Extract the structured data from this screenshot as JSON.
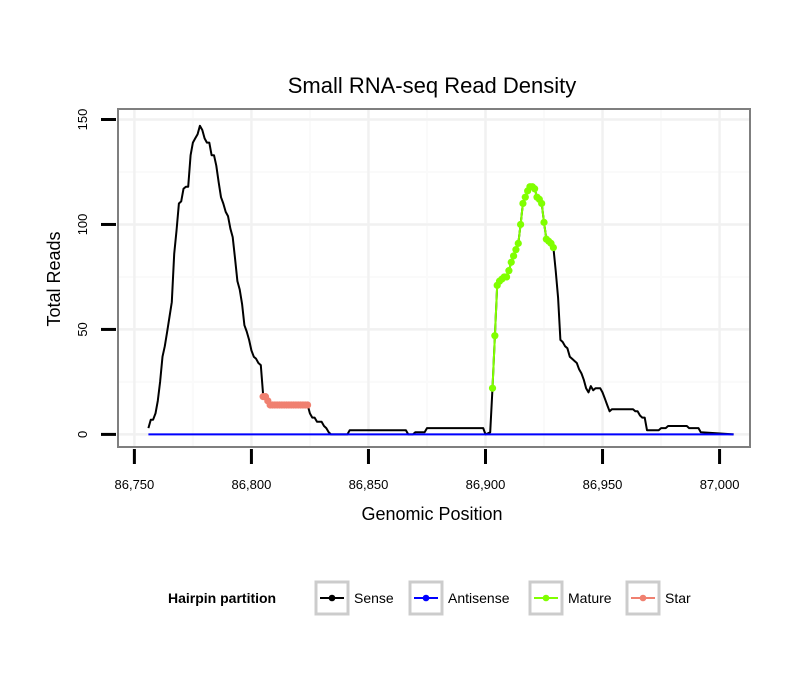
{
  "chart_data": {
    "type": "line",
    "title": "Small RNA-seq Read Density",
    "xlabel": "Genomic Position",
    "ylabel": "Total Reads",
    "xlim": [
      86743,
      87013
    ],
    "ylim": [
      -6,
      155
    ],
    "x_ticks": [
      86750,
      86800,
      86850,
      86900,
      86950,
      87000
    ],
    "x_tick_labels": [
      "86,750",
      "86,800",
      "86,850",
      "86,900",
      "86,950",
      "87,000"
    ],
    "y_ticks": [
      0,
      50,
      100,
      150
    ],
    "y_tick_labels": [
      "0",
      "50",
      "100",
      "150"
    ],
    "grid": true,
    "legend": {
      "title": "Hairpin partition",
      "position": "bottom",
      "entries": [
        "Sense",
        "Antisense",
        "Mature",
        "Star"
      ]
    },
    "series": [
      {
        "name": "Sense",
        "color": "#000000",
        "markers": false,
        "points": [
          [
            86756,
            3
          ],
          [
            86757,
            7
          ],
          [
            86758,
            7
          ],
          [
            86759,
            10
          ],
          [
            86760,
            16
          ],
          [
            86761,
            25
          ],
          [
            86762,
            37
          ],
          [
            86763,
            42
          ],
          [
            86764,
            49
          ],
          [
            86765,
            56
          ],
          [
            86766,
            63
          ],
          [
            86767,
            86
          ],
          [
            86768,
            97
          ],
          [
            86769,
            110
          ],
          [
            86770,
            111
          ],
          [
            86771,
            117
          ],
          [
            86772,
            118
          ],
          [
            86773,
            118
          ],
          [
            86774,
            133
          ],
          [
            86775,
            139
          ],
          [
            86776,
            141
          ],
          [
            86777,
            143
          ],
          [
            86778,
            147
          ],
          [
            86779,
            145
          ],
          [
            86780,
            141
          ],
          [
            86781,
            139
          ],
          [
            86782,
            139
          ],
          [
            86783,
            133
          ],
          [
            86784,
            133
          ],
          [
            86785,
            128
          ],
          [
            86786,
            120
          ],
          [
            86787,
            113
          ],
          [
            86788,
            110
          ],
          [
            86789,
            106
          ],
          [
            86790,
            104
          ],
          [
            86791,
            98
          ],
          [
            86792,
            94
          ],
          [
            86793,
            84
          ],
          [
            86794,
            73
          ],
          [
            86795,
            69
          ],
          [
            86796,
            62
          ],
          [
            86797,
            52
          ],
          [
            86798,
            49
          ],
          [
            86799,
            45
          ],
          [
            86800,
            40
          ],
          [
            86801,
            37
          ],
          [
            86802,
            36
          ],
          [
            86803,
            34
          ],
          [
            86804,
            33
          ],
          [
            86805,
            19
          ],
          [
            86806,
            18
          ],
          [
            86807,
            16
          ],
          [
            86808,
            14
          ],
          [
            86824,
            14
          ],
          [
            86825,
            10
          ],
          [
            86826,
            8
          ],
          [
            86827,
            8
          ],
          [
            86828,
            6
          ],
          [
            86829,
            6
          ],
          [
            86830,
            6
          ],
          [
            86831,
            4
          ],
          [
            86832,
            3
          ],
          [
            86833,
            1
          ],
          [
            86834,
            0
          ],
          [
            86841,
            0
          ],
          [
            86842,
            2
          ],
          [
            86858,
            2
          ],
          [
            86866,
            2
          ],
          [
            86867,
            0
          ],
          [
            86869,
            0
          ],
          [
            86870,
            1
          ],
          [
            86874,
            1
          ],
          [
            86875,
            3
          ],
          [
            86899,
            3
          ],
          [
            86900,
            0
          ],
          [
            86902,
            1
          ],
          [
            86903,
            22
          ],
          [
            86904,
            47
          ],
          [
            86905,
            71
          ],
          [
            86906,
            73
          ],
          [
            86907,
            74
          ],
          [
            86908,
            75
          ],
          [
            86909,
            75
          ],
          [
            86910,
            78
          ],
          [
            86911,
            82
          ],
          [
            86912,
            85
          ],
          [
            86913,
            88
          ],
          [
            86914,
            91
          ],
          [
            86915,
            100
          ],
          [
            86916,
            110
          ],
          [
            86917,
            113
          ],
          [
            86918,
            116
          ],
          [
            86919,
            118
          ],
          [
            86920,
            118
          ],
          [
            86921,
            117
          ],
          [
            86922,
            113
          ],
          [
            86923,
            112
          ],
          [
            86924,
            110
          ],
          [
            86925,
            101
          ],
          [
            86926,
            93
          ],
          [
            86927,
            92
          ],
          [
            86928,
            91
          ],
          [
            86929,
            89
          ],
          [
            86930,
            78
          ],
          [
            86931,
            65
          ],
          [
            86932,
            45
          ],
          [
            86933,
            44
          ],
          [
            86934,
            42
          ],
          [
            86935,
            41
          ],
          [
            86936,
            37
          ],
          [
            86937,
            36
          ],
          [
            86938,
            35
          ],
          [
            86939,
            34
          ],
          [
            86940,
            31
          ],
          [
            86941,
            29
          ],
          [
            86942,
            26
          ],
          [
            86943,
            22
          ],
          [
            86944,
            20
          ],
          [
            86945,
            23
          ],
          [
            86946,
            21
          ],
          [
            86947,
            22
          ],
          [
            86948,
            22
          ],
          [
            86949,
            22
          ],
          [
            86950,
            20
          ],
          [
            86951,
            17
          ],
          [
            86952,
            14
          ],
          [
            86953,
            11
          ],
          [
            86954,
            12
          ],
          [
            86963,
            12
          ],
          [
            86964,
            11
          ],
          [
            86965,
            11
          ],
          [
            86966,
            9
          ],
          [
            86967,
            8
          ],
          [
            86968,
            8
          ],
          [
            86969,
            2
          ],
          [
            86974,
            2
          ],
          [
            86975,
            3
          ],
          [
            86977,
            3
          ],
          [
            86978,
            4
          ],
          [
            86986,
            4
          ],
          [
            86987,
            3
          ],
          [
            86991,
            3
          ],
          [
            86992,
            1
          ],
          [
            87006,
            0
          ]
        ]
      },
      {
        "name": "Antisense",
        "color": "#0000ff",
        "markers": false,
        "points": [
          [
            86756,
            0
          ],
          [
            87006,
            0
          ]
        ]
      },
      {
        "name": "Mature",
        "color": "#80ff00",
        "markers": true,
        "points": [
          [
            86903,
            22
          ],
          [
            86904,
            47
          ],
          [
            86905,
            71
          ],
          [
            86906,
            73
          ],
          [
            86907,
            74
          ],
          [
            86908,
            75
          ],
          [
            86909,
            75
          ],
          [
            86910,
            78
          ],
          [
            86911,
            82
          ],
          [
            86912,
            85
          ],
          [
            86913,
            88
          ],
          [
            86914,
            91
          ],
          [
            86915,
            100
          ],
          [
            86916,
            110
          ],
          [
            86917,
            113
          ],
          [
            86918,
            116
          ],
          [
            86919,
            118
          ],
          [
            86920,
            118
          ],
          [
            86921,
            117
          ],
          [
            86922,
            113
          ],
          [
            86923,
            112
          ],
          [
            86924,
            110
          ],
          [
            86925,
            101
          ],
          [
            86926,
            93
          ],
          [
            86927,
            92
          ],
          [
            86928,
            91
          ],
          [
            86929,
            89
          ]
        ]
      },
      {
        "name": "Star",
        "color": "#f08070",
        "markers": true,
        "points": [
          [
            86805,
            18
          ],
          [
            86806,
            18
          ],
          [
            86807,
            16
          ],
          [
            86808,
            14
          ],
          [
            86809,
            14
          ],
          [
            86810,
            14
          ],
          [
            86811,
            14
          ],
          [
            86812,
            14
          ],
          [
            86813,
            14
          ],
          [
            86814,
            14
          ],
          [
            86815,
            14
          ],
          [
            86816,
            14
          ],
          [
            86817,
            14
          ],
          [
            86818,
            14
          ],
          [
            86819,
            14
          ],
          [
            86820,
            14
          ],
          [
            86821,
            14
          ],
          [
            86822,
            14
          ],
          [
            86823,
            14
          ],
          [
            86824,
            14
          ]
        ]
      }
    ]
  }
}
